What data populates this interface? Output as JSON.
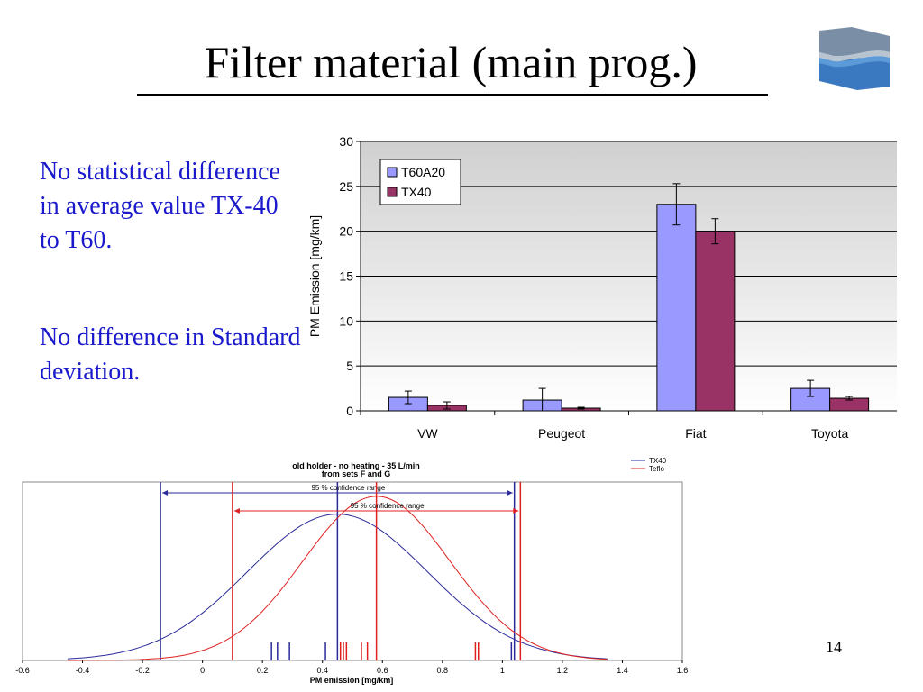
{
  "slide": {
    "title": "Filter material (main prog.)",
    "bullets": [
      "No statistical difference in average value TX-40 to T60.",
      "No difference in Standard deviation."
    ],
    "page_number": "14"
  },
  "colors": {
    "bullet_text": "#1a1acc",
    "t60a20": "#9999ff",
    "tx40": "#993366",
    "dist_tx40": "#2a2a9a",
    "dist_teflo": "#e02020"
  },
  "chart_data": [
    {
      "type": "bar",
      "categories": [
        "VW",
        "Peugeot",
        "Fiat",
        "Toyota"
      ],
      "series": [
        {
          "name": "T60A20",
          "values": [
            1.5,
            1.2,
            23.0,
            2.5
          ],
          "error": [
            0.7,
            1.3,
            2.3,
            0.9
          ]
        },
        {
          "name": "TX40",
          "values": [
            0.6,
            0.3,
            20.0,
            1.4
          ],
          "error": [
            0.4,
            0.1,
            1.4,
            0.2
          ]
        }
      ],
      "ylabel": "PM Emission [mg/km]",
      "ylim": [
        0,
        30
      ],
      "yticks": [
        0,
        5,
        10,
        15,
        20,
        25,
        30
      ],
      "legend": "top-left",
      "grid": true
    },
    {
      "type": "line",
      "title": "old holder - no heating - 35 L/min",
      "subtitle": "from sets F and G",
      "xlabel": "PM emission [mg/km]",
      "xlim": [
        -0.6,
        1.6
      ],
      "xticks": [
        -0.6,
        -0.4,
        -0.2,
        0,
        0.2,
        0.4,
        0.6,
        0.8,
        1,
        1.2,
        1.4,
        1.6
      ],
      "legend": "top-right",
      "series": [
        {
          "name": "TX40",
          "mean": 0.45,
          "sd": 0.3,
          "peak": 0.82,
          "ci": [
            -0.14,
            1.04
          ],
          "ci_label": "95 % confidence range",
          "samples": [
            0.23,
            0.25,
            0.29,
            0.41,
            1.03
          ]
        },
        {
          "name": "Teflo",
          "mean": 0.58,
          "sd": 0.245,
          "peak": 0.92,
          "ci": [
            0.1,
            1.06
          ],
          "ci_label": "95 % confidence range",
          "samples": [
            0.46,
            0.47,
            0.48,
            0.53,
            0.55,
            0.91,
            0.92
          ]
        }
      ]
    }
  ]
}
